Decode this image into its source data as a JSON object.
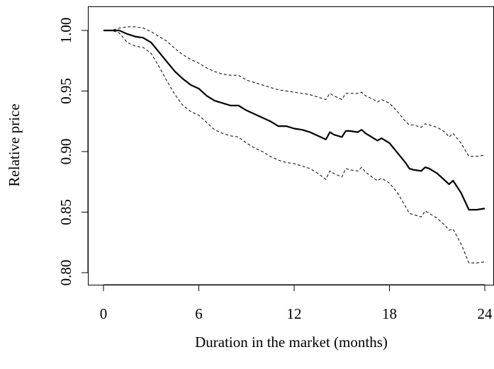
{
  "chart_data": {
    "type": "line",
    "title": "",
    "xlabel": "Duration in the market (months)",
    "ylabel": "Relative price",
    "xlim": [
      0,
      24
    ],
    "ylim": [
      0.8,
      1.0
    ],
    "x_ticks": [
      0,
      6,
      12,
      18,
      24
    ],
    "x_tick_labels": [
      "0",
      "6",
      "12",
      "18",
      "24"
    ],
    "y_ticks": [
      0.8,
      0.85,
      0.9,
      0.95,
      1.0
    ],
    "y_tick_labels": [
      "0.80",
      "0.85",
      "0.90",
      "0.95",
      "1.00"
    ],
    "grid": false,
    "legend": "none",
    "x": [
      0,
      0.5,
      1,
      1.5,
      2,
      2.5,
      3,
      3.5,
      4,
      4.5,
      5,
      5.5,
      6,
      6.5,
      7,
      7.5,
      8,
      8.5,
      9,
      9.5,
      10,
      10.5,
      11,
      11.5,
      12,
      12.5,
      13,
      13.5,
      14,
      14.25,
      14.5,
      15,
      15.25,
      15.5,
      16,
      16.25,
      16.5,
      17,
      17.25,
      17.5,
      18,
      18.5,
      19,
      19.25,
      19.5,
      20,
      20.25,
      20.5,
      21,
      21.5,
      21.75,
      22,
      22.5,
      23,
      23.5,
      24
    ],
    "series": [
      {
        "style": "solid",
        "values": [
          1.0,
          1.0,
          1.0,
          0.997,
          0.995,
          0.994,
          0.99,
          0.982,
          0.974,
          0.966,
          0.96,
          0.955,
          0.952,
          0.946,
          0.942,
          0.94,
          0.938,
          0.938,
          0.934,
          0.931,
          0.928,
          0.925,
          0.921,
          0.921,
          0.919,
          0.918,
          0.916,
          0.913,
          0.91,
          0.916,
          0.914,
          0.912,
          0.917,
          0.917,
          0.916,
          0.918,
          0.915,
          0.911,
          0.909,
          0.911,
          0.907,
          0.899,
          0.891,
          0.886,
          0.885,
          0.884,
          0.887,
          0.886,
          0.882,
          0.876,
          0.873,
          0.876,
          0.866,
          0.852,
          0.852,
          0.853
        ],
        "color": "#000000"
      },
      {
        "style": "dashed",
        "values": [
          1.0,
          1.0,
          1.002,
          1.003,
          1.003,
          1.002,
          0.999,
          0.995,
          0.991,
          0.985,
          0.98,
          0.976,
          0.973,
          0.969,
          0.966,
          0.964,
          0.963,
          0.963,
          0.959,
          0.957,
          0.955,
          0.953,
          0.951,
          0.95,
          0.949,
          0.948,
          0.947,
          0.945,
          0.943,
          0.948,
          0.946,
          0.943,
          0.948,
          0.948,
          0.948,
          0.949,
          0.946,
          0.943,
          0.941,
          0.943,
          0.94,
          0.933,
          0.925,
          0.922,
          0.922,
          0.92,
          0.923,
          0.922,
          0.92,
          0.916,
          0.912,
          0.915,
          0.907,
          0.896,
          0.896,
          0.897
        ],
        "color": "#000000"
      },
      {
        "style": "dashed",
        "values": [
          1.0,
          1.0,
          0.998,
          0.99,
          0.987,
          0.986,
          0.981,
          0.97,
          0.958,
          0.947,
          0.938,
          0.933,
          0.93,
          0.924,
          0.918,
          0.915,
          0.913,
          0.912,
          0.907,
          0.903,
          0.9,
          0.896,
          0.893,
          0.891,
          0.89,
          0.888,
          0.886,
          0.882,
          0.877,
          0.884,
          0.882,
          0.879,
          0.886,
          0.885,
          0.884,
          0.887,
          0.883,
          0.878,
          0.876,
          0.878,
          0.874,
          0.866,
          0.855,
          0.849,
          0.848,
          0.846,
          0.851,
          0.849,
          0.845,
          0.839,
          0.835,
          0.836,
          0.824,
          0.808,
          0.808,
          0.809
        ],
        "color": "#000000"
      }
    ]
  }
}
